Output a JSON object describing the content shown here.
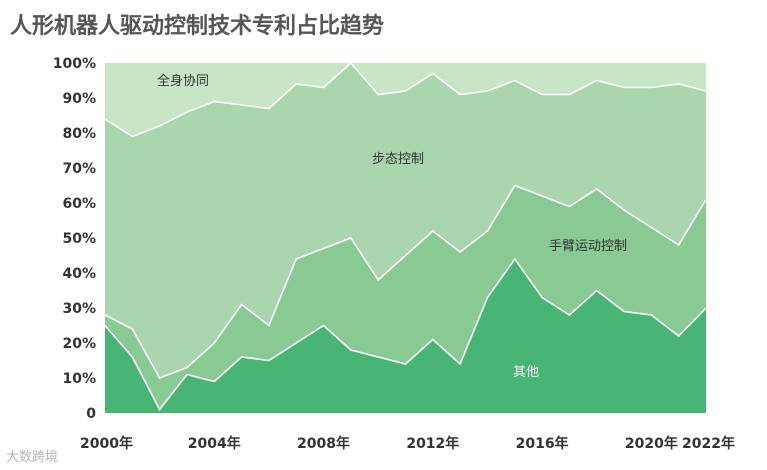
{
  "title": "人形机器人驱动控制技术专利占比趋势",
  "watermark": "大数跨境",
  "colors": {
    "其他": "#48b574",
    "手臂运动控制": "#88c994",
    "步态控制": "#a9d6ac",
    "全身协同": "#c6e6c6"
  },
  "chart_data": {
    "type": "area",
    "stacked": true,
    "x": [
      2000,
      2001,
      2002,
      2003,
      2004,
      2005,
      2006,
      2007,
      2008,
      2009,
      2010,
      2011,
      2012,
      2013,
      2014,
      2015,
      2016,
      2017,
      2018,
      2019,
      2020,
      2021,
      2022
    ],
    "x_tick_labels": [
      "2000年",
      "2004年",
      "2008年",
      "2012年",
      "2016年",
      "2020年",
      "2022年"
    ],
    "x_tick_values": [
      2000,
      2004,
      2008,
      2012,
      2016,
      2020,
      2022
    ],
    "y_tick_labels": [
      "0",
      "10%",
      "20%",
      "30%",
      "40%",
      "50%",
      "60%",
      "70%",
      "80%",
      "90%",
      "100%"
    ],
    "ylim": [
      0,
      100
    ],
    "series": [
      {
        "name": "其他",
        "values": [
          25,
          16,
          1,
          11,
          9,
          16,
          15,
          20,
          25,
          18,
          16,
          14,
          21,
          14,
          33,
          44,
          33,
          28,
          35,
          29,
          28,
          22,
          30
        ]
      },
      {
        "name": "手臂运动控制",
        "values": [
          3,
          8,
          9,
          2,
          11,
          15,
          10,
          24,
          22,
          32,
          22,
          31,
          31,
          32,
          19,
          21,
          29,
          31,
          29,
          29,
          25,
          26,
          31
        ]
      },
      {
        "name": "步态控制",
        "values": [
          56,
          55,
          72,
          73,
          69,
          57,
          62,
          50,
          46,
          50,
          53,
          47,
          45,
          45,
          40,
          30,
          29,
          32,
          31,
          35,
          40,
          46,
          31
        ]
      },
      {
        "name": "全身协同",
        "values": [
          16,
          21,
          18,
          14,
          11,
          12,
          13,
          6,
          7,
          0,
          9,
          8,
          3,
          9,
          8,
          5,
          9,
          9,
          5,
          7,
          7,
          6,
          8
        ]
      }
    ]
  }
}
